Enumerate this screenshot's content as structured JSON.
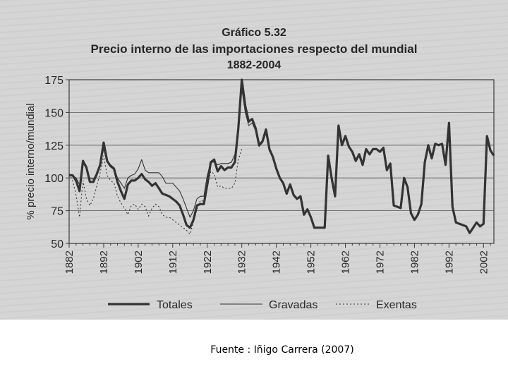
{
  "chart_data": {
    "type": "line",
    "title_line1": "Gráfico 5.32",
    "title_line2": "Precio interno de las importaciones respecto del mundial",
    "title_line3": "1882-2004",
    "ylabel": "% precio interno/mundial",
    "xlabel": "",
    "xlim": [
      1882,
      2005
    ],
    "ylim": [
      50,
      175
    ],
    "y_ticks": [
      50,
      75,
      100,
      125,
      150,
      175
    ],
    "x_ticks": [
      1882,
      1892,
      1902,
      1912,
      1922,
      1932,
      1942,
      1952,
      1962,
      1972,
      1982,
      1992,
      2002
    ],
    "grid": "horizontal",
    "legend_position": "bottom",
    "series": [
      {
        "name": "Totales",
        "style": "thick",
        "points": [
          [
            1882,
            102
          ],
          [
            1883,
            102
          ],
          [
            1884,
            98
          ],
          [
            1885,
            90
          ],
          [
            1886,
            113
          ],
          [
            1887,
            108
          ],
          [
            1888,
            97
          ],
          [
            1889,
            97
          ],
          [
            1890,
            103
          ],
          [
            1891,
            110
          ],
          [
            1892,
            127
          ],
          [
            1893,
            113
          ],
          [
            1894,
            109
          ],
          [
            1895,
            107
          ],
          [
            1896,
            97
          ],
          [
            1897,
            90
          ],
          [
            1898,
            84
          ],
          [
            1899,
            95
          ],
          [
            1900,
            98
          ],
          [
            1901,
            98
          ],
          [
            1902,
            100
          ],
          [
            1903,
            103
          ],
          [
            1904,
            99
          ],
          [
            1905,
            97
          ],
          [
            1906,
            94
          ],
          [
            1907,
            96
          ],
          [
            1908,
            92
          ],
          [
            1909,
            88
          ],
          [
            1910,
            87
          ],
          [
            1911,
            86
          ],
          [
            1912,
            84
          ],
          [
            1913,
            82
          ],
          [
            1914,
            79
          ],
          [
            1915,
            72
          ],
          [
            1916,
            64
          ],
          [
            1917,
            62
          ],
          [
            1918,
            68
          ],
          [
            1919,
            79
          ],
          [
            1920,
            80
          ],
          [
            1921,
            80
          ],
          [
            1922,
            95
          ],
          [
            1923,
            112
          ],
          [
            1924,
            114
          ],
          [
            1925,
            105
          ],
          [
            1926,
            109
          ],
          [
            1927,
            106
          ],
          [
            1928,
            108
          ],
          [
            1929,
            108
          ],
          [
            1930,
            112
          ],
          [
            1931,
            138
          ],
          [
            1932,
            175
          ],
          [
            1933,
            155
          ],
          [
            1934,
            143
          ],
          [
            1935,
            145
          ],
          [
            1936,
            138
          ],
          [
            1937,
            125
          ],
          [
            1938,
            128
          ],
          [
            1939,
            137
          ],
          [
            1940,
            122
          ],
          [
            1941,
            116
          ],
          [
            1942,
            107
          ],
          [
            1943,
            100
          ],
          [
            1944,
            96
          ],
          [
            1945,
            88
          ],
          [
            1946,
            95
          ],
          [
            1947,
            87
          ],
          [
            1948,
            84
          ],
          [
            1949,
            86
          ],
          [
            1950,
            72
          ],
          [
            1951,
            76
          ],
          [
            1952,
            70
          ],
          [
            1953,
            62
          ],
          [
            1954,
            62
          ],
          [
            1955,
            62
          ],
          [
            1956,
            62
          ],
          [
            1957,
            117
          ],
          [
            1958,
            100
          ],
          [
            1959,
            86
          ],
          [
            1960,
            140
          ],
          [
            1961,
            125
          ],
          [
            1962,
            132
          ],
          [
            1963,
            124
          ],
          [
            1964,
            120
          ],
          [
            1965,
            113
          ],
          [
            1966,
            118
          ],
          [
            1967,
            110
          ],
          [
            1968,
            122
          ],
          [
            1969,
            118
          ],
          [
            1970,
            122
          ],
          [
            1971,
            122
          ],
          [
            1972,
            120
          ],
          [
            1973,
            123
          ],
          [
            1974,
            106
          ],
          [
            1975,
            111
          ],
          [
            1976,
            79
          ],
          [
            1977,
            78
          ],
          [
            1978,
            77
          ],
          [
            1979,
            100
          ],
          [
            1980,
            93
          ],
          [
            1981,
            73
          ],
          [
            1982,
            68
          ],
          [
            1983,
            72
          ],
          [
            1984,
            80
          ],
          [
            1985,
            112
          ],
          [
            1986,
            125
          ],
          [
            1987,
            115
          ],
          [
            1988,
            126
          ],
          [
            1989,
            125
          ],
          [
            1990,
            126
          ],
          [
            1991,
            110
          ],
          [
            1992,
            142
          ],
          [
            1993,
            78
          ],
          [
            1994,
            66
          ],
          [
            1995,
            65
          ],
          [
            1996,
            64
          ],
          [
            1997,
            63
          ],
          [
            1998,
            58
          ],
          [
            1999,
            62
          ],
          [
            2000,
            66
          ],
          [
            2001,
            63
          ],
          [
            2002,
            65
          ],
          [
            2003,
            132
          ],
          [
            2004,
            121
          ],
          [
            2005,
            117
          ]
        ]
      },
      {
        "name": "Gravadas",
        "style": "thin",
        "points": [
          [
            1882,
            103
          ],
          [
            1883,
            102
          ],
          [
            1884,
            100
          ],
          [
            1885,
            95
          ],
          [
            1886,
            112
          ],
          [
            1887,
            107
          ],
          [
            1888,
            100
          ],
          [
            1889,
            99
          ],
          [
            1890,
            104
          ],
          [
            1891,
            111
          ],
          [
            1892,
            122
          ],
          [
            1893,
            112
          ],
          [
            1894,
            110
          ],
          [
            1895,
            108
          ],
          [
            1896,
            100
          ],
          [
            1897,
            96
          ],
          [
            1898,
            92
          ],
          [
            1899,
            100
          ],
          [
            1900,
            102
          ],
          [
            1901,
            103
          ],
          [
            1902,
            107
          ],
          [
            1903,
            114
          ],
          [
            1904,
            106
          ],
          [
            1905,
            104
          ],
          [
            1906,
            104
          ],
          [
            1907,
            104
          ],
          [
            1908,
            104
          ],
          [
            1909,
            101
          ],
          [
            1910,
            96
          ],
          [
            1911,
            96
          ],
          [
            1912,
            96
          ],
          [
            1913,
            93
          ],
          [
            1914,
            90
          ],
          [
            1915,
            84
          ],
          [
            1916,
            77
          ],
          [
            1917,
            70
          ],
          [
            1918,
            75
          ],
          [
            1919,
            84
          ],
          [
            1920,
            86
          ],
          [
            1921,
            86
          ],
          [
            1922,
            102
          ],
          [
            1923,
            112
          ],
          [
            1924,
            112
          ],
          [
            1925,
            110
          ],
          [
            1926,
            111
          ],
          [
            1927,
            111
          ],
          [
            1928,
            111
          ],
          [
            1929,
            112
          ],
          [
            1930,
            118
          ],
          [
            1931,
            140
          ],
          [
            1932,
            168
          ],
          [
            1933,
            150
          ],
          [
            1934,
            140
          ],
          [
            1935,
            142
          ],
          [
            1936,
            136
          ],
          [
            1937,
            124
          ],
          [
            1938,
            127
          ],
          [
            1939,
            134
          ],
          [
            1940,
            120
          ]
        ]
      },
      {
        "name": "Exentas",
        "style": "dotted",
        "points": [
          [
            1882,
            103
          ],
          [
            1883,
            98
          ],
          [
            1884,
            87
          ],
          [
            1885,
            70
          ],
          [
            1886,
            98
          ],
          [
            1887,
            84
          ],
          [
            1888,
            79
          ],
          [
            1889,
            84
          ],
          [
            1890,
            94
          ],
          [
            1891,
            104
          ],
          [
            1892,
            117
          ],
          [
            1893,
            102
          ],
          [
            1894,
            98
          ],
          [
            1895,
            96
          ],
          [
            1896,
            86
          ],
          [
            1897,
            81
          ],
          [
            1898,
            77
          ],
          [
            1899,
            72
          ],
          [
            1900,
            79
          ],
          [
            1901,
            80
          ],
          [
            1902,
            76
          ],
          [
            1903,
            80
          ],
          [
            1904,
            78
          ],
          [
            1905,
            71
          ],
          [
            1906,
            77
          ],
          [
            1907,
            80
          ],
          [
            1908,
            78
          ],
          [
            1909,
            72
          ],
          [
            1910,
            70
          ],
          [
            1911,
            70
          ],
          [
            1912,
            68
          ],
          [
            1913,
            66
          ],
          [
            1914,
            64
          ],
          [
            1915,
            62
          ],
          [
            1916,
            60
          ],
          [
            1917,
            57
          ],
          [
            1918,
            66
          ],
          [
            1919,
            76
          ],
          [
            1920,
            83
          ],
          [
            1921,
            82
          ],
          [
            1922,
            93
          ],
          [
            1923,
            105
          ],
          [
            1924,
            103
          ],
          [
            1925,
            93
          ],
          [
            1926,
            94
          ],
          [
            1927,
            92
          ],
          [
            1928,
            92
          ],
          [
            1929,
            92
          ],
          [
            1930,
            96
          ],
          [
            1931,
            114
          ],
          [
            1932,
            122
          ]
        ]
      }
    ]
  },
  "legend": {
    "totales": "Totales",
    "gravadas": "Gravadas",
    "exentas": "Exentas"
  },
  "source_note": "Fuente : Iñigo Carrera (2007)"
}
